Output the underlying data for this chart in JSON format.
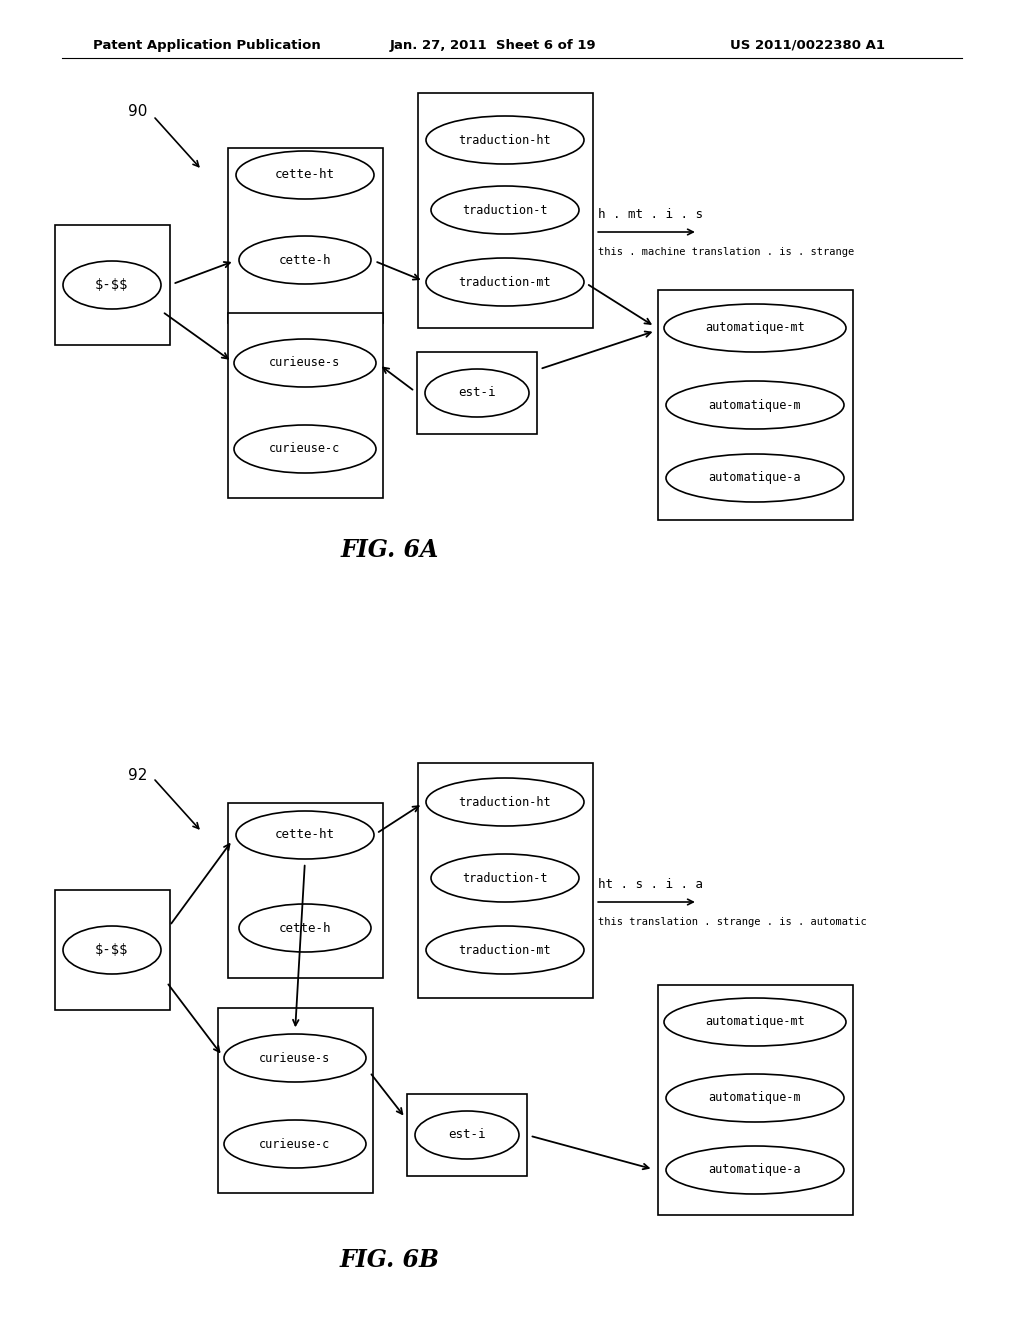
{
  "header_left": "Patent Application Publication",
  "header_mid": "Jan. 27, 2011  Sheet 6 of 19",
  "header_right": "US 2011/0022380 A1",
  "fig6a_caption": "FIG. 6A",
  "fig6b_caption": "FIG. 6B",
  "bg_color": "#ffffff",
  "box_color": "#000000",
  "text_color": "#000000"
}
